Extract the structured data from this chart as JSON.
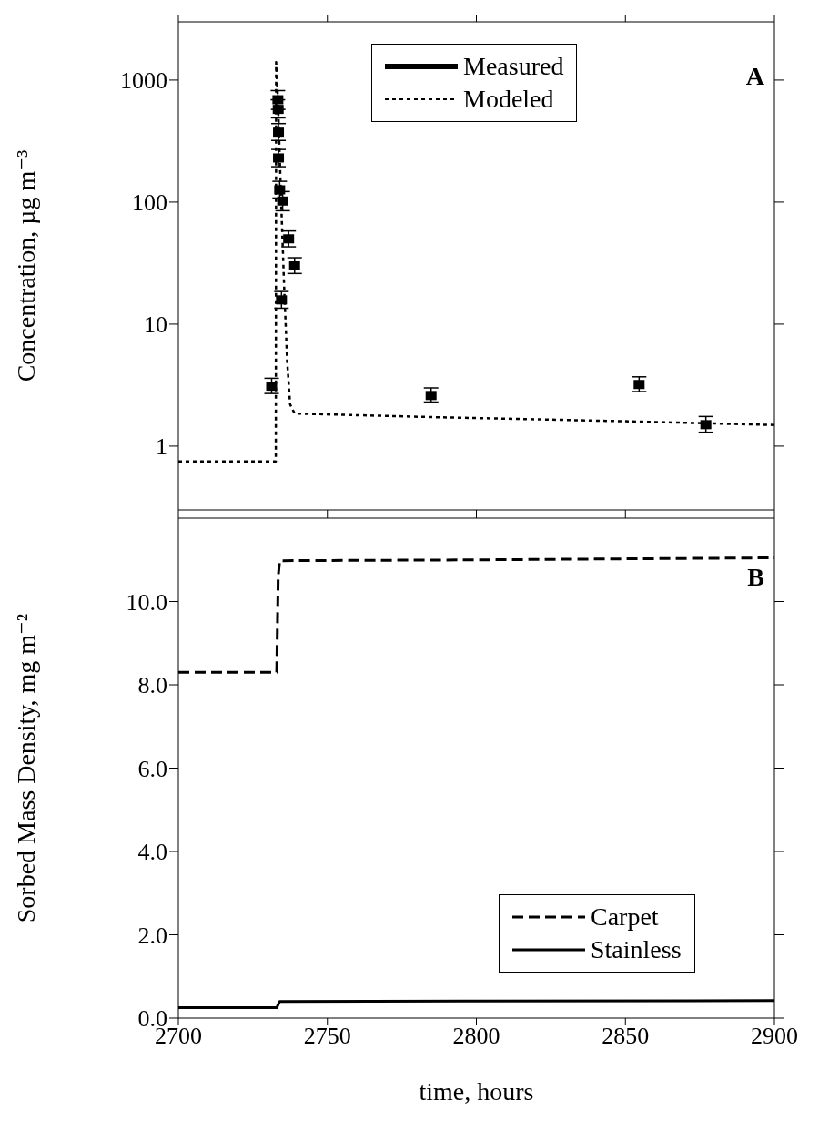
{
  "chart_data": [
    {
      "type": "line",
      "ylabel": "Concentration, µg m⁻³",
      "log": "y",
      "xlim": [
        2700,
        2900
      ],
      "xticks": [
        2700,
        2750,
        2800,
        2850,
        2900
      ],
      "ylim": [
        0.3,
        3000
      ],
      "yticks": [
        1,
        10,
        100,
        1000
      ],
      "tick_labels": "y",
      "legend": "top",
      "grid": false,
      "annotations": [
        "A"
      ],
      "series": [
        {
          "name": "Measured",
          "type": "scatter",
          "color": "#000000",
          "marker": "square",
          "x": [
            2731.3,
            2733.4,
            2733.5,
            2733.6,
            2733.6,
            2734.0,
            2734.6,
            2735.0,
            2737.0,
            2739.0,
            2784.8,
            2854.6,
            2877.0
          ],
          "values": [
            3.1,
            690,
            575,
            374,
            230,
            126,
            15.8,
            102,
            50,
            30,
            2.6,
            3.2,
            1.5
          ],
          "errors": [
            [
              2.7,
              3.6
            ],
            [
              690,
              820
            ],
            [
              490,
              575
            ],
            [
              320,
              440
            ],
            [
              195,
              270
            ],
            [
              108,
              148
            ],
            [
              13.5,
              18.5
            ],
            [
              85,
              122
            ],
            [
              43,
              58
            ],
            [
              26,
              35
            ],
            [
              2.3,
              3.0
            ],
            [
              2.8,
              3.7
            ],
            [
              1.3,
              1.75
            ]
          ]
        },
        {
          "name": "Modeled",
          "color": "#000000",
          "line_style": "dotted",
          "marker": "none",
          "x": [
            2700,
            2732.7,
            2732.8,
            2733.5,
            2734.5,
            2735.5,
            2736.5,
            2737.5,
            2739,
            2785,
            2850,
            2900
          ],
          "values": [
            0.75,
            0.75,
            1400,
            600,
            100,
            20,
            5,
            2.2,
            1.85,
            1.73,
            1.6,
            1.49
          ]
        }
      ]
    },
    {
      "type": "line",
      "ylabel": "Sorbed Mass Density, mg m⁻²",
      "xlabel": "time, hours",
      "xlim": [
        2700,
        2900
      ],
      "xticks": [
        2700,
        2750,
        2800,
        2850,
        2900
      ],
      "ylim": [
        0,
        12
      ],
      "yticks": [
        {
          "value": 0,
          "label": "0.0"
        },
        {
          "value": 2,
          "label": "2.0"
        },
        {
          "value": 4,
          "label": "4.0"
        },
        {
          "value": 6,
          "label": "6.0"
        },
        {
          "value": 8,
          "label": "8.0"
        },
        {
          "value": 10,
          "label": "10.0"
        }
      ],
      "legend": "bottom right",
      "grid": false,
      "annotations": [
        "B"
      ],
      "series": [
        {
          "name": "Carpet",
          "color": "#000000",
          "line_style": "dashed",
          "marker": "none",
          "x": [
            2700,
            2733,
            2733.5,
            2734,
            2800,
            2900
          ],
          "values": [
            8.3,
            8.3,
            10.6,
            10.98,
            11.0,
            11.05
          ]
        },
        {
          "name": "Stainless",
          "color": "#000000",
          "line_style": "solid",
          "marker": "none",
          "x": [
            2700,
            2733,
            2734,
            2800,
            2900
          ],
          "values": [
            0.25,
            0.25,
            0.4,
            0.41,
            0.42
          ]
        }
      ]
    }
  ]
}
